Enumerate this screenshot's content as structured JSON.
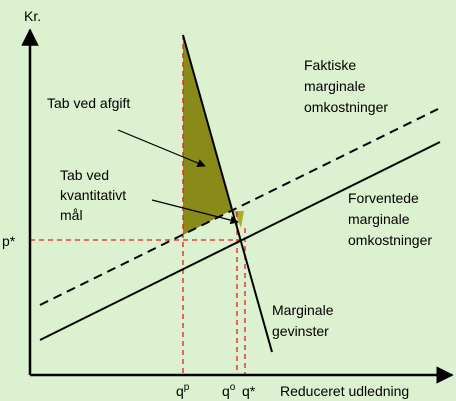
{
  "axes": {
    "y_label": "Kr.",
    "x_label": "Reduceret udledning"
  },
  "ticks": {
    "p_star": "p*",
    "q_p": {
      "base": "q",
      "sup": "p"
    },
    "q_o": {
      "base": "q",
      "sup": "o"
    },
    "q_star": "q*"
  },
  "labels": {
    "actual_mc": [
      "Faktiske",
      "marginale",
      "omkostninger"
    ],
    "expected_mc": [
      "Forventede",
      "marginale",
      "omkostninger"
    ],
    "marginal_benefit": [
      "Marginale",
      "gevinster"
    ],
    "loss_tax": "Tab ved afgift",
    "loss_quantity": [
      "Tab ved",
      "kvantitativt",
      "mål"
    ]
  }
}
